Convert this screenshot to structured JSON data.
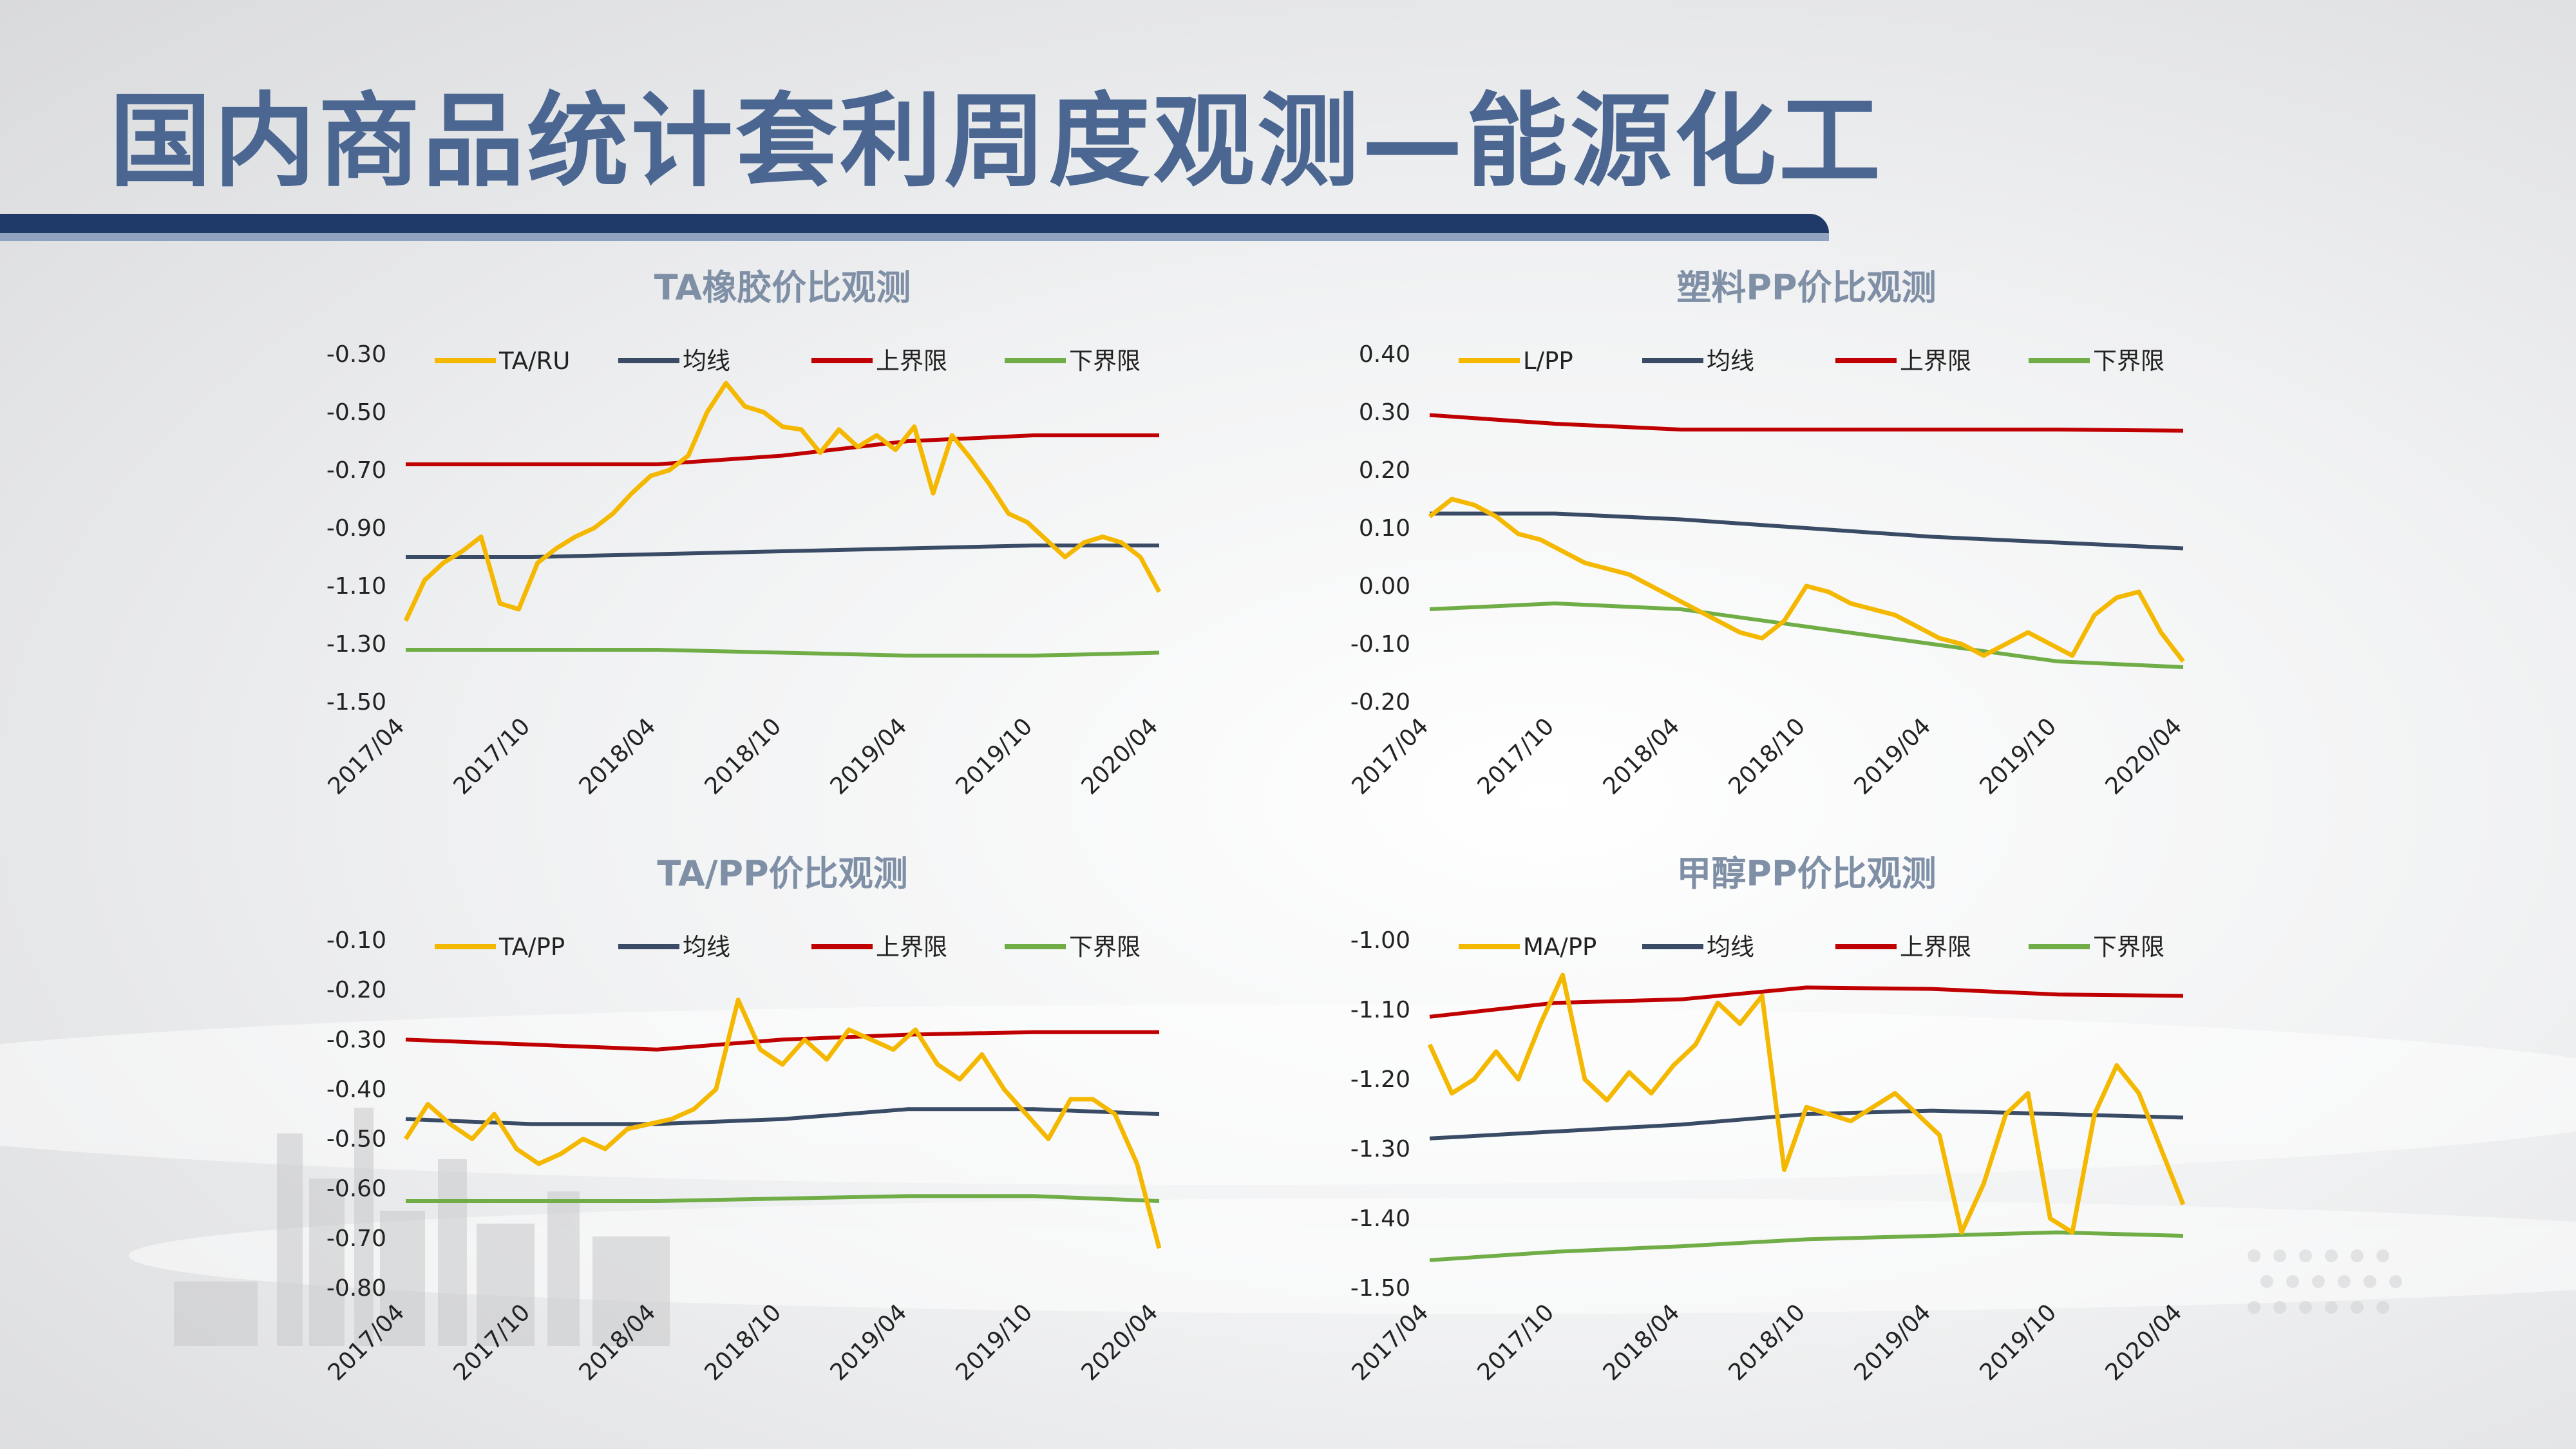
{
  "page": {
    "title": "国内商品统计套利周度观测—能源化工"
  },
  "colors": {
    "title": "#4a6691",
    "ratio": "#f5b800",
    "mean": "#3a4b66",
    "upper": "#c00000",
    "lower": "#70ad47"
  },
  "chart_data": [
    {
      "id": "ta-ru",
      "type": "line",
      "title": "TA橡胶价比观测",
      "x_ticks": [
        "2017/04",
        "2017/10",
        "2018/04",
        "2018/10",
        "2019/04",
        "2019/10",
        "2020/04"
      ],
      "ylim": [
        -1.5,
        -0.3
      ],
      "y_ticks": [
        "-0.30",
        "-0.50",
        "-0.70",
        "-0.90",
        "-1.10",
        "-1.30",
        "-1.50"
      ],
      "legend": [
        "TA/RU",
        "均线",
        "上界限",
        "下界限"
      ],
      "series": [
        {
          "name": "TA/RU",
          "role": "ratio",
          "values": [
            -1.22,
            -1.08,
            -1.02,
            -0.98,
            -0.93,
            -1.16,
            -1.18,
            -1.02,
            -0.97,
            -0.93,
            -0.9,
            -0.85,
            -0.78,
            -0.72,
            -0.7,
            -0.65,
            -0.5,
            -0.4,
            -0.48,
            -0.5,
            -0.55,
            -0.56,
            -0.64,
            -0.56,
            -0.62,
            -0.58,
            -0.63,
            -0.55,
            -0.78,
            -0.58,
            -0.66,
            -0.75,
            -0.85,
            -0.88,
            -0.94,
            -1.0,
            -0.95,
            -0.93,
            -0.95,
            -1.0,
            -1.12
          ]
        },
        {
          "name": "均线",
          "role": "mean",
          "values": [
            -1.0,
            -1.0,
            -0.99,
            -0.98,
            -0.97,
            -0.96,
            -0.96
          ]
        },
        {
          "name": "上界限",
          "role": "upper",
          "values": [
            -0.68,
            -0.68,
            -0.68,
            -0.65,
            -0.6,
            -0.58,
            -0.58
          ]
        },
        {
          "name": "下界限",
          "role": "lower",
          "values": [
            -1.32,
            -1.32,
            -1.32,
            -1.33,
            -1.34,
            -1.34,
            -1.33
          ]
        }
      ]
    },
    {
      "id": "l-pp",
      "type": "line",
      "title": "塑料PP价比观测",
      "x_ticks": [
        "2017/04",
        "2017/10",
        "2018/04",
        "2018/10",
        "2019/04",
        "2019/10",
        "2020/04"
      ],
      "ylim": [
        -0.2,
        0.4
      ],
      "y_ticks": [
        "0.40",
        "0.30",
        "0.20",
        "0.10",
        "0.00",
        "-0.10",
        "-0.20"
      ],
      "legend": [
        "L/PP",
        "均线",
        "上界限",
        "下界限"
      ],
      "series": [
        {
          "name": "L/PP",
          "role": "ratio",
          "values": [
            0.12,
            0.15,
            0.14,
            0.12,
            0.09,
            0.08,
            0.06,
            0.04,
            0.03,
            0.02,
            0.0,
            -0.02,
            -0.04,
            -0.06,
            -0.08,
            -0.09,
            -0.06,
            0.0,
            -0.01,
            -0.03,
            -0.04,
            -0.05,
            -0.07,
            -0.09,
            -0.1,
            -0.12,
            -0.1,
            -0.08,
            -0.1,
            -0.12,
            -0.05,
            -0.02,
            -0.01,
            -0.08,
            -0.13
          ]
        },
        {
          "name": "均线",
          "role": "mean",
          "values": [
            0.125,
            0.125,
            0.115,
            0.1,
            0.085,
            0.075,
            0.065
          ]
        },
        {
          "name": "上界限",
          "role": "upper",
          "values": [
            0.295,
            0.28,
            0.27,
            0.27,
            0.27,
            0.27,
            0.268
          ]
        },
        {
          "name": "下界限",
          "role": "lower",
          "values": [
            -0.04,
            -0.03,
            -0.04,
            -0.07,
            -0.1,
            -0.13,
            -0.14
          ]
        }
      ]
    },
    {
      "id": "ta-pp",
      "type": "line",
      "title": "TA/PP价比观测",
      "x_ticks": [
        "2017/04",
        "2017/10",
        "2018/04",
        "2018/10",
        "2019/04",
        "2019/10",
        "2020/04"
      ],
      "ylim": [
        -0.8,
        -0.1
      ],
      "y_ticks": [
        "-0.10",
        "-0.20",
        "-0.30",
        "-0.40",
        "-0.50",
        "-0.60",
        "-0.70",
        "-0.80"
      ],
      "legend": [
        "TA/PP",
        "均线",
        "上界限",
        "下界限"
      ],
      "series": [
        {
          "name": "TA/PP",
          "role": "ratio",
          "values": [
            -0.5,
            -0.43,
            -0.47,
            -0.5,
            -0.45,
            -0.52,
            -0.55,
            -0.53,
            -0.5,
            -0.52,
            -0.48,
            -0.47,
            -0.46,
            -0.44,
            -0.4,
            -0.22,
            -0.32,
            -0.35,
            -0.3,
            -0.34,
            -0.28,
            -0.3,
            -0.32,
            -0.28,
            -0.35,
            -0.38,
            -0.33,
            -0.4,
            -0.45,
            -0.5,
            -0.42,
            -0.42,
            -0.45,
            -0.55,
            -0.72
          ]
        },
        {
          "name": "均线",
          "role": "mean",
          "values": [
            -0.46,
            -0.47,
            -0.47,
            -0.46,
            -0.44,
            -0.44,
            -0.45
          ]
        },
        {
          "name": "上界限",
          "role": "upper",
          "values": [
            -0.3,
            -0.31,
            -0.32,
            -0.3,
            -0.29,
            -0.285,
            -0.285
          ]
        },
        {
          "name": "下界限",
          "role": "lower",
          "values": [
            -0.625,
            -0.625,
            -0.625,
            -0.62,
            -0.615,
            -0.615,
            -0.625
          ]
        }
      ]
    },
    {
      "id": "ma-pp",
      "type": "line",
      "title": "甲醇PP价比观测",
      "x_ticks": [
        "2017/04",
        "2017/10",
        "2018/04",
        "2018/10",
        "2019/04",
        "2019/10",
        "2020/04"
      ],
      "ylim": [
        -1.5,
        -1.0
      ],
      "y_ticks": [
        "-1.00",
        "-1.10",
        "-1.20",
        "-1.30",
        "-1.40",
        "-1.50"
      ],
      "legend": [
        "MA/PP",
        "均线",
        "上界限",
        "下界限"
      ],
      "series": [
        {
          "name": "MA/PP",
          "role": "ratio",
          "values": [
            -1.15,
            -1.22,
            -1.2,
            -1.16,
            -1.2,
            -1.12,
            -1.05,
            -1.2,
            -1.23,
            -1.19,
            -1.22,
            -1.18,
            -1.15,
            -1.09,
            -1.12,
            -1.08,
            -1.33,
            -1.24,
            -1.25,
            -1.26,
            -1.24,
            -1.22,
            -1.25,
            -1.28,
            -1.42,
            -1.35,
            -1.25,
            -1.22,
            -1.4,
            -1.42,
            -1.25,
            -1.18,
            -1.22,
            -1.3,
            -1.38
          ]
        },
        {
          "name": "均线",
          "role": "mean",
          "values": [
            -1.285,
            -1.275,
            -1.265,
            -1.25,
            -1.245,
            -1.25,
            -1.255
          ]
        },
        {
          "name": "上界限",
          "role": "upper",
          "values": [
            -1.11,
            -1.09,
            -1.085,
            -1.068,
            -1.07,
            -1.078,
            -1.08
          ]
        },
        {
          "name": "下界限",
          "role": "lower",
          "values": [
            -1.46,
            -1.448,
            -1.44,
            -1.43,
            -1.425,
            -1.42,
            -1.425
          ]
        }
      ]
    }
  ]
}
